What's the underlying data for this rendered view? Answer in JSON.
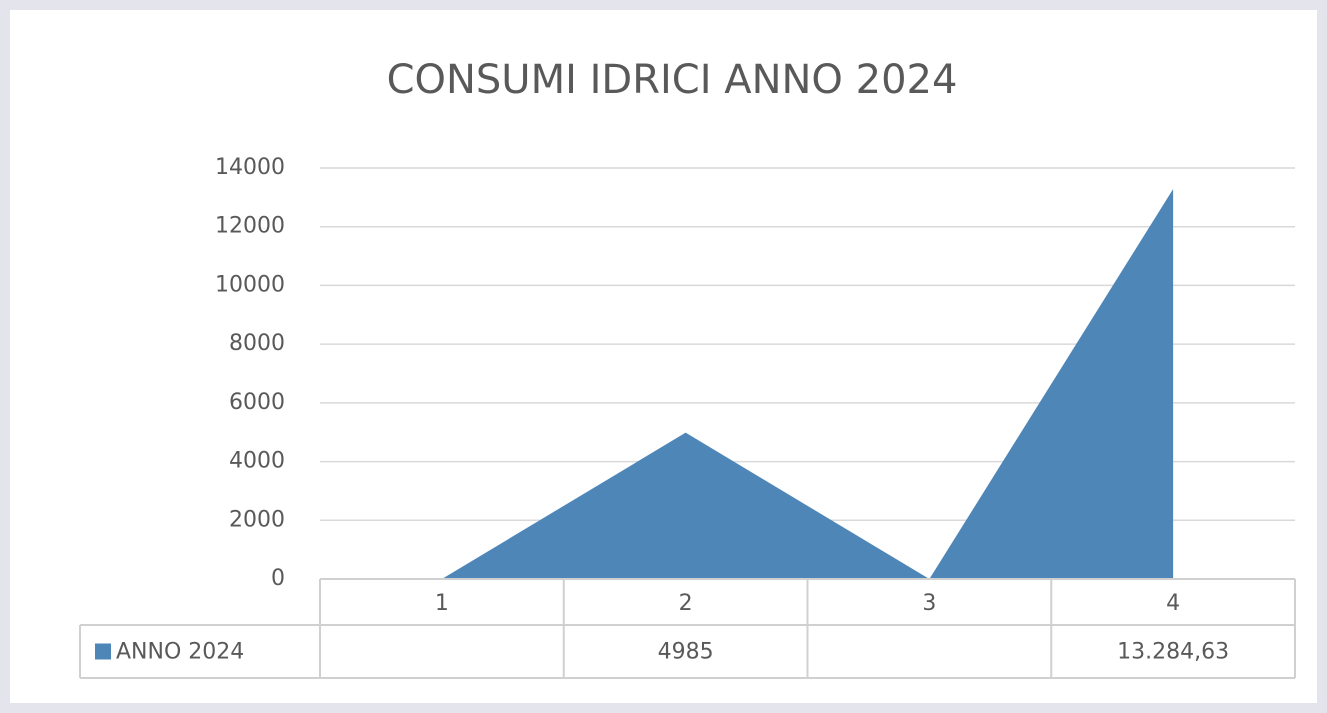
{
  "chart_data": {
    "type": "area",
    "title": "CONSUMI IDRICI ANNO 2024",
    "categories": [
      "1",
      "2",
      "3",
      "4"
    ],
    "series": [
      {
        "name": "ANNO 2024",
        "color": "#4f86b8",
        "values": [
          null,
          4985,
          null,
          13284.63
        ],
        "value_labels": [
          null,
          "4985",
          null,
          "13.284,63"
        ]
      }
    ],
    "empty_cells": "zero",
    "ylim": [
      0,
      14000
    ],
    "yticks": [
      0,
      2000,
      4000,
      6000,
      8000,
      10000,
      12000,
      14000
    ],
    "grid": true,
    "data_table": true
  }
}
